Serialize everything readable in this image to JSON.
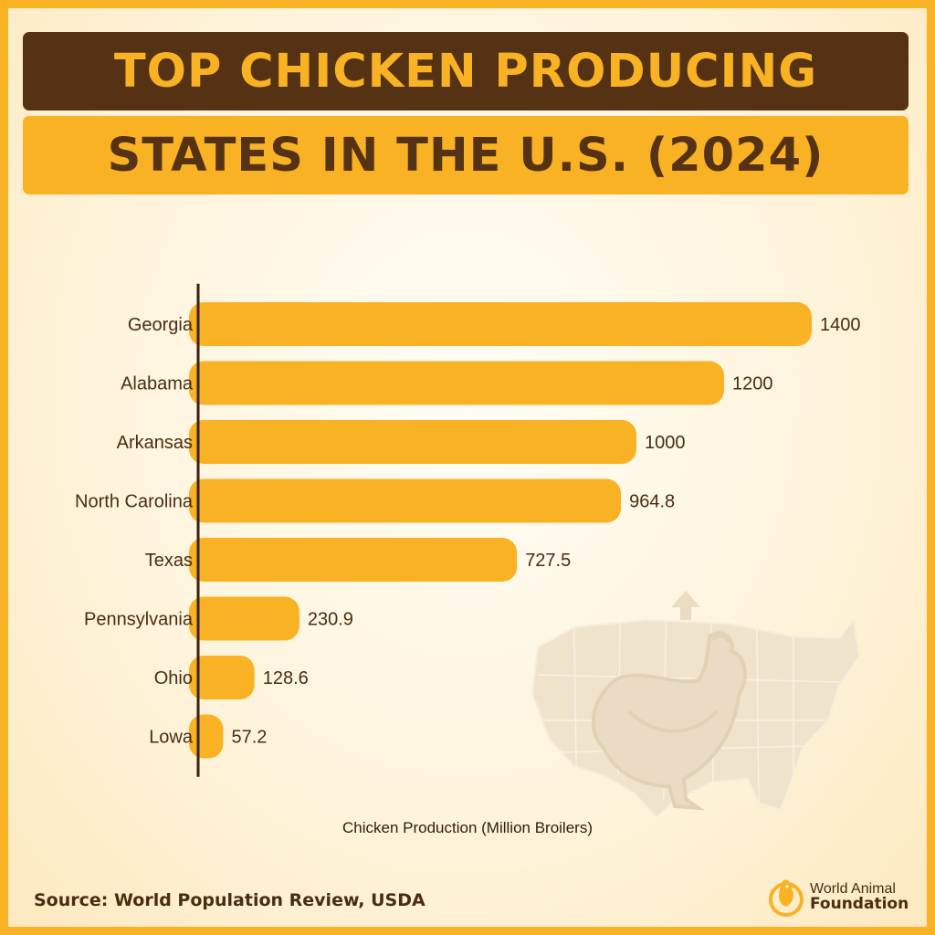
{
  "header": {
    "title_line1": "TOP CHICKEN PRODUCING",
    "title_line2": "STATES IN THE U.S. (2024)"
  },
  "chart_data": {
    "type": "bar",
    "orientation": "horizontal",
    "categories": [
      "Georgia",
      "Alabama",
      "Arkansas",
      "North Carolina",
      "Texas",
      "Pennsylvania",
      "Ohio",
      "Lowa"
    ],
    "values": [
      1400,
      1200,
      1000,
      964.8,
      727.5,
      230.9,
      128.6,
      57.2
    ],
    "value_labels": [
      "1400",
      "1200",
      "1000",
      "964.8",
      "727.5",
      "230.9",
      "128.6",
      "57.2"
    ],
    "xlabel": "Chicken Production (Million Broilers)",
    "ylabel": "",
    "xlim": [
      0,
      1400
    ],
    "grid": false,
    "legend": "none",
    "bar_color": "#F9B223",
    "axis_color": "#3A200C"
  },
  "footer": {
    "source": "Source: World Population Review, USDA",
    "brand_line1": "World Animal",
    "brand_line2": "Foundation",
    "brand_logo_icon": "chicken-circle-logo-icon"
  },
  "decoration": {
    "background_icon": "us-map-chicken-icon"
  },
  "colors": {
    "dark_brown": "#563214",
    "amber": "#F9B223",
    "cream": "#FEF4DC"
  }
}
